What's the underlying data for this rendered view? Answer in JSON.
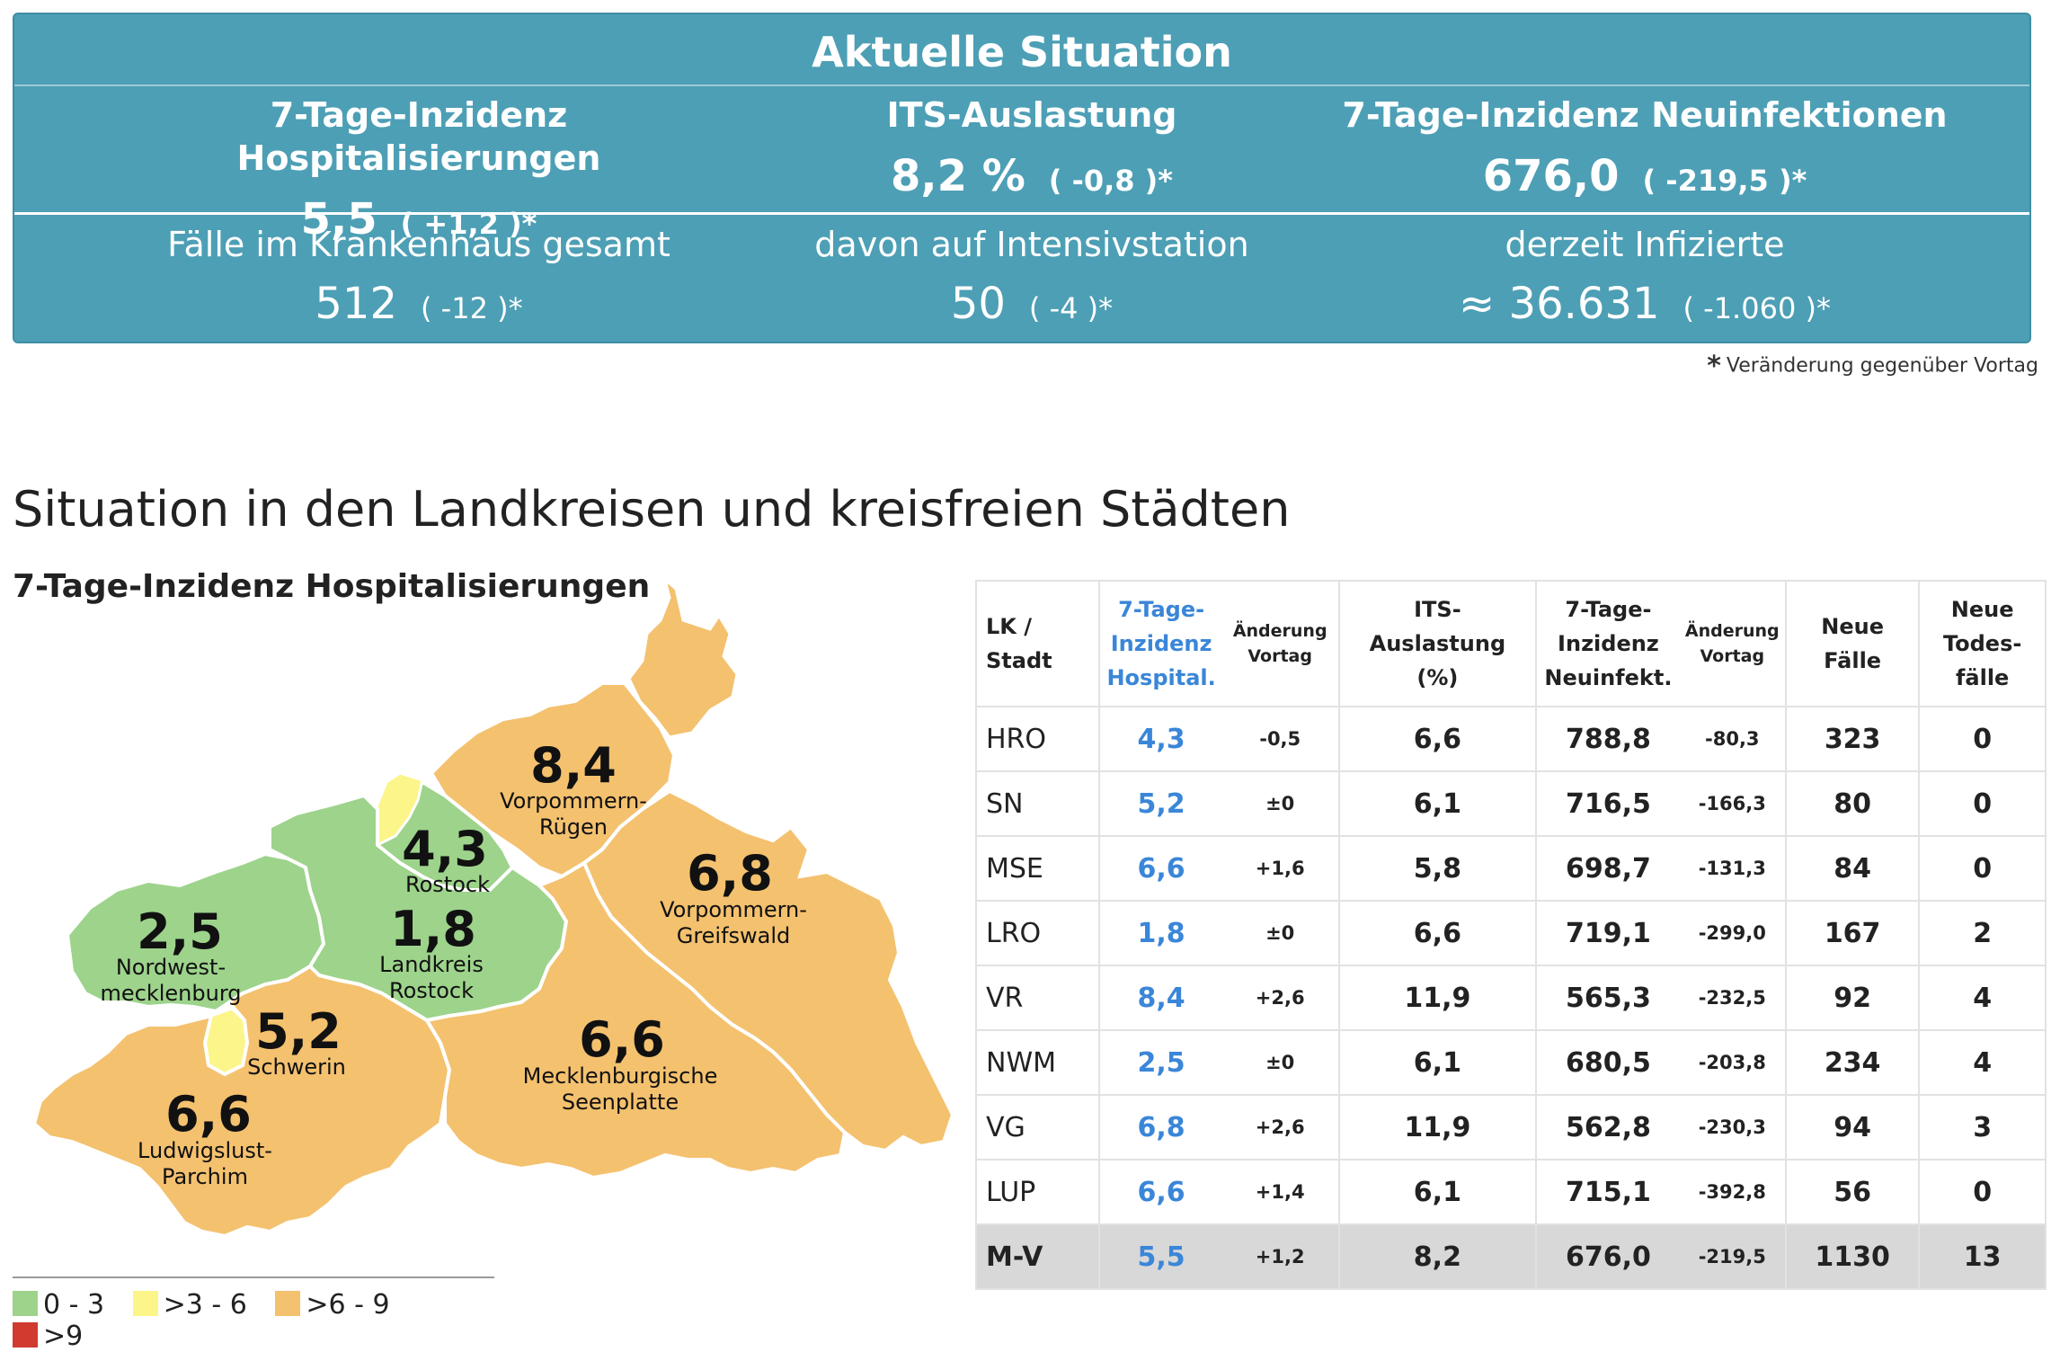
{
  "panel": {
    "title": "Aktuelle Situation",
    "kpis": [
      {
        "label": "7-Tage-Inzidenz Hospitalisierungen",
        "value": "5,5",
        "change": "( +1,2 )*"
      },
      {
        "label": "ITS-Auslastung",
        "value": "8,2 %",
        "change": "( -0,8 )*"
      },
      {
        "label": "7-Tage-Inzidenz Neuinfektionen",
        "value": "676,0",
        "change": "( -219,5 )*"
      }
    ],
    "stats": [
      {
        "label": "Fälle im Krankenhaus gesamt",
        "value": "512",
        "change": "( -12 )*"
      },
      {
        "label": "davon auf Intensivstation",
        "value": "50",
        "change": "( -4 )*"
      },
      {
        "label": "derzeit Infizierte",
        "value": "≈ 36.631",
        "change": "( -1.060 )*"
      }
    ],
    "footnote_star": "*",
    "footnote": "Veränderung gegenüber Vortag"
  },
  "section_title": "Situation in den Landkreisen und kreisfreien Städten",
  "map": {
    "title": "7-Tage-Inzidenz Hospitalisierungen",
    "colors": {
      "green": "#9dd38b",
      "yellow": "#fbf58a",
      "orange": "#f4c16f",
      "red": "#d03a2f"
    },
    "regions": [
      {
        "value": "8,4",
        "name1": "Vorpommern-",
        "name2": "Rügen"
      },
      {
        "value": "4,3",
        "name1": "Rostock",
        "name2": ""
      },
      {
        "value": "6,8",
        "name1": "Vorpommern-",
        "name2": "Greifswald"
      },
      {
        "value": "2,5",
        "name1": "Nordwest-",
        "name2": "mecklenburg"
      },
      {
        "value": "1,8",
        "name1": "Landkreis",
        "name2": "Rostock"
      },
      {
        "value": "5,2",
        "name1": "Schwerin",
        "name2": ""
      },
      {
        "value": "6,6",
        "name1": "Mecklenburgische",
        "name2": "Seenplatte"
      },
      {
        "value": "6,6",
        "name1": "Ludwigslust-",
        "name2": "Parchim"
      }
    ],
    "legend": [
      {
        "label": "0 - 3",
        "color": "#9dd38b"
      },
      {
        "label": ">3 - 6",
        "color": "#fbf58a"
      },
      {
        "label": ">6 - 9",
        "color": "#f4c16f"
      },
      {
        "label": ">9",
        "color": "#d03a2f"
      }
    ]
  },
  "table": {
    "headers": {
      "lk": [
        "LK /",
        "Stadt"
      ],
      "hosp": [
        "7-Tage-",
        "Inzidenz",
        "Hospital."
      ],
      "hosp_chg": [
        "Änderung",
        "Vortag"
      ],
      "its": [
        "ITS-",
        "Auslastung",
        "(%)"
      ],
      "neu": [
        "7-Tage-",
        "Inzidenz",
        "Neuinfekt."
      ],
      "neu_chg": [
        "Änderung",
        "Vortag"
      ],
      "faelle": [
        "Neue",
        "Fälle"
      ],
      "tod": [
        "Neue",
        "Todes-",
        "fälle"
      ]
    },
    "rows": [
      {
        "lk": "HRO",
        "hosp": "4,3",
        "hosp_chg": "-0,5",
        "its": "6,6",
        "neu": "788,8",
        "neu_chg": "-80,3",
        "faelle": "323",
        "tod": "0"
      },
      {
        "lk": "SN",
        "hosp": "5,2",
        "hosp_chg": "±0",
        "its": "6,1",
        "neu": "716,5",
        "neu_chg": "-166,3",
        "faelle": "80",
        "tod": "0"
      },
      {
        "lk": "MSE",
        "hosp": "6,6",
        "hosp_chg": "+1,6",
        "its": "5,8",
        "neu": "698,7",
        "neu_chg": "-131,3",
        "faelle": "84",
        "tod": "0"
      },
      {
        "lk": "LRO",
        "hosp": "1,8",
        "hosp_chg": "±0",
        "its": "6,6",
        "neu": "719,1",
        "neu_chg": "-299,0",
        "faelle": "167",
        "tod": "2"
      },
      {
        "lk": "VR",
        "hosp": "8,4",
        "hosp_chg": "+2,6",
        "its": "11,9",
        "neu": "565,3",
        "neu_chg": "-232,5",
        "faelle": "92",
        "tod": "4"
      },
      {
        "lk": "NWM",
        "hosp": "2,5",
        "hosp_chg": "±0",
        "its": "6,1",
        "neu": "680,5",
        "neu_chg": "-203,8",
        "faelle": "234",
        "tod": "4"
      },
      {
        "lk": "VG",
        "hosp": "6,8",
        "hosp_chg": "+2,6",
        "its": "11,9",
        "neu": "562,8",
        "neu_chg": "-230,3",
        "faelle": "94",
        "tod": "3"
      },
      {
        "lk": "LUP",
        "hosp": "6,6",
        "hosp_chg": "+1,4",
        "its": "6,1",
        "neu": "715,1",
        "neu_chg": "-392,8",
        "faelle": "56",
        "tod": "0"
      }
    ],
    "total": {
      "lk": "M-V",
      "hosp": "5,5",
      "hosp_chg": "+1,2",
      "its": "8,2",
      "neu": "676,0",
      "neu_chg": "-219,5",
      "faelle": "1130",
      "tod": "13"
    }
  }
}
